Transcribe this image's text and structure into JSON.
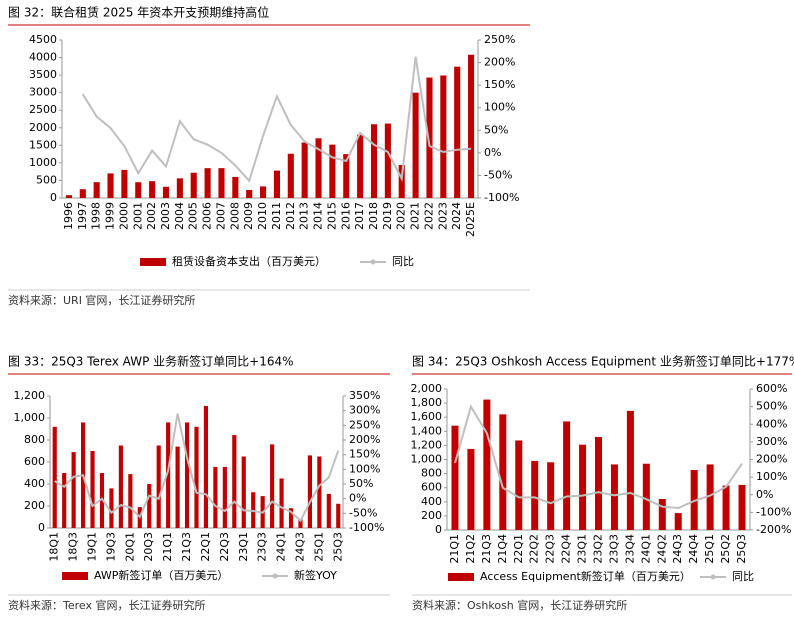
{
  "chart_data": [
    {
      "type": "bar",
      "title": "图 32：联合租赁 2025 年资本开支预期维持高位",
      "source": "资料来源：URI 官网，长江证券研究所",
      "categories": [
        "1996",
        "1997",
        "1998",
        "1999",
        "2000",
        "2001",
        "2002",
        "2003",
        "2004",
        "2005",
        "2006",
        "2007",
        "2008",
        "2009",
        "2010",
        "2011",
        "2012",
        "2013",
        "2014",
        "2015",
        "2016",
        "2017",
        "2018",
        "2019",
        "2020",
        "2021",
        "2022",
        "2023",
        "2024",
        "2025E"
      ],
      "series": [
        {
          "name": "租赁设备资本支出（百万美元）",
          "type": "bar",
          "color": "#c00000",
          "values": [
            80,
            250,
            450,
            700,
            800,
            450,
            480,
            320,
            560,
            720,
            850,
            850,
            600,
            230,
            330,
            780,
            1260,
            1580,
            1700,
            1520,
            1250,
            1800,
            2100,
            2120,
            940,
            3000,
            3430,
            3490,
            3740,
            4080
          ]
        },
        {
          "name": "同比",
          "type": "line",
          "axis": "y2",
          "color": "#bfbfbf",
          "values": [
            null,
            130,
            80,
            55,
            15,
            -45,
            5,
            -30,
            70,
            30,
            18,
            0,
            -28,
            -62,
            38,
            125,
            62,
            25,
            8,
            -10,
            -18,
            44,
            18,
            2,
            -57,
            213,
            15,
            2,
            7,
            9
          ]
        }
      ],
      "ylim": [
        0,
        4500
      ],
      "yticks": [
        0,
        500,
        1000,
        1500,
        2000,
        2500,
        3000,
        3500,
        4000,
        4500
      ],
      "y2lim": [
        -100,
        250
      ],
      "y2ticks": [
        {
          "value": -100,
          "label": "-100%"
        },
        {
          "value": -50,
          "label": "-50%"
        },
        {
          "value": 0,
          "label": "0%"
        },
        {
          "value": 50,
          "label": "50%"
        },
        {
          "value": 100,
          "label": "100%"
        },
        {
          "value": 150,
          "label": "150%"
        },
        {
          "value": 200,
          "label": "200%"
        },
        {
          "value": 250,
          "label": "250%"
        }
      ]
    },
    {
      "type": "bar",
      "title": "图 33：25Q3 Terex AWP 业务新签订单同比+164%",
      "source": "资料来源：Terex 官网，长江证券研究所",
      "categories": [
        "18Q1",
        null,
        "18Q3",
        null,
        "19Q1",
        null,
        "19Q3",
        null,
        "20Q1",
        null,
        "20Q3",
        null,
        "21Q1",
        null,
        "21Q3",
        null,
        "22Q1",
        null,
        "22Q3",
        null,
        "23Q1",
        null,
        "23Q3",
        null,
        "24Q1",
        null,
        "24Q3",
        null,
        "25Q1",
        null,
        "25Q3"
      ],
      "series": [
        {
          "name": "AWP新签订单（百万美元）",
          "type": "bar",
          "color": "#c00000",
          "values": [
            920,
            500,
            690,
            960,
            700,
            500,
            360,
            750,
            490,
            190,
            400,
            750,
            960,
            740,
            960,
            920,
            1110,
            555,
            555,
            845,
            650,
            325,
            290,
            760,
            450,
            180,
            80,
            660,
            650,
            310,
            220
          ]
        },
        {
          "name": "新签YOY",
          "type": "line",
          "axis": "y2",
          "color": "#bfbfbf",
          "values": [
            60,
            40,
            75,
            80,
            -25,
            0,
            -48,
            -22,
            -30,
            -62,
            10,
            0,
            95,
            290,
            140,
            20,
            15,
            -25,
            -42,
            -10,
            -40,
            -42,
            -48,
            -10,
            -30,
            -45,
            -75,
            -12,
            45,
            72,
            164
          ]
        }
      ],
      "ylim": [
        0,
        1200
      ],
      "yticks": [
        0,
        200,
        400,
        600,
        800,
        {
          "value": 1000,
          "label": "1,000"
        },
        {
          "value": 1200,
          "label": "1,200"
        }
      ],
      "y2lim": [
        -100,
        350
      ],
      "y2ticks": [
        {
          "value": -100,
          "label": "-100%"
        },
        {
          "value": -50,
          "label": "-50%"
        },
        {
          "value": 0,
          "label": "0%"
        },
        {
          "value": 50,
          "label": "50%"
        },
        {
          "value": 100,
          "label": "100%"
        },
        {
          "value": 150,
          "label": "150%"
        },
        {
          "value": 200,
          "label": "200%"
        },
        {
          "value": 250,
          "label": "250%"
        },
        {
          "value": 300,
          "label": "300%"
        },
        {
          "value": 350,
          "label": "350%"
        }
      ]
    },
    {
      "type": "bar",
      "title": "图 34：25Q3 Oshkosh Access Equipment 业务新签订单同比+177%",
      "source": "资料来源：Oshkosh 官网，长江证券研究所",
      "categories": [
        "21Q1",
        "21Q2",
        "21Q3",
        "21Q4",
        "22Q1",
        "22Q2",
        "22Q3",
        "22Q4",
        "23Q1",
        "23Q2",
        "23Q3",
        "23Q4",
        "24Q1",
        "24Q2",
        "24Q3",
        "24Q4",
        "25Q1",
        "25Q2",
        "25Q3"
      ],
      "series": [
        {
          "name": "Access Equipment新签订单（百万美元）",
          "type": "bar",
          "color": "#c00000",
          "values": [
            1480,
            1150,
            1850,
            1640,
            1270,
            980,
            960,
            1540,
            1210,
            1320,
            930,
            1690,
            940,
            440,
            240,
            850,
            930,
            630,
            640
          ]
        },
        {
          "name": "同比",
          "type": "line",
          "axis": "y2",
          "color": "#bfbfbf",
          "values": [
            180,
            500,
            350,
            40,
            -15,
            -15,
            -48,
            -10,
            -5,
            15,
            -3,
            10,
            -25,
            -68,
            -75,
            -35,
            -5,
            45,
            177
          ]
        }
      ],
      "ylim": [
        0,
        2000
      ],
      "yticks": [
        0,
        200,
        400,
        600,
        800,
        {
          "value": 1000,
          "label": "1,000"
        },
        {
          "value": 1200,
          "label": "1,200"
        },
        {
          "value": 1400,
          "label": "1,400"
        },
        {
          "value": 1600,
          "label": "1,600"
        },
        {
          "value": 1800,
          "label": "1,800"
        },
        {
          "value": 2000,
          "label": "2,000"
        }
      ],
      "y2lim": [
        -200,
        600
      ],
      "y2ticks": [
        {
          "value": -200,
          "label": "-200%"
        },
        {
          "value": -100,
          "label": "-100%"
        },
        {
          "value": 0,
          "label": "0%"
        },
        {
          "value": 100,
          "label": "100%"
        },
        {
          "value": 200,
          "label": "200%"
        },
        {
          "value": 300,
          "label": "300%"
        },
        {
          "value": 400,
          "label": "400%"
        },
        {
          "value": 500,
          "label": "500%"
        },
        {
          "value": 600,
          "label": "600%"
        }
      ]
    }
  ]
}
